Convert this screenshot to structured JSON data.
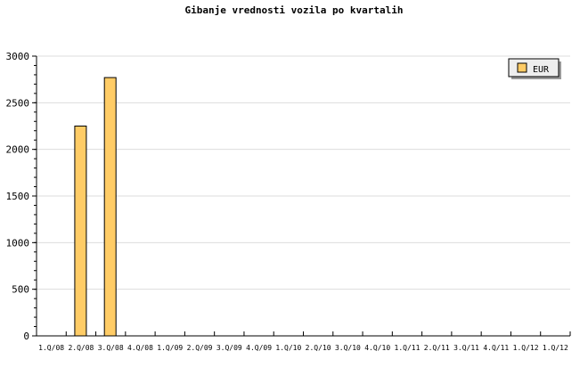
{
  "chart_data": {
    "type": "bar",
    "title": "Gibanje vrednosti vozila po kvartalih",
    "categories": [
      "1.Q/08",
      "2.Q/08",
      "3.Q/08",
      "4.Q/08",
      "1.Q/09",
      "2.Q/09",
      "3.Q/09",
      "4.Q/09",
      "1.Q/10",
      "2.Q/10",
      "3.Q/10",
      "4.Q/10",
      "1.Q/11",
      "2.Q/11",
      "3.Q/11",
      "4.Q/11",
      "1.Q/12",
      "1.Q/12"
    ],
    "series": [
      {
        "name": "EUR",
        "color": "#ffcc66",
        "values": [
          0,
          2250,
          2770,
          0,
          0,
          0,
          0,
          0,
          0,
          0,
          0,
          0,
          0,
          0,
          0,
          0,
          0,
          0
        ]
      }
    ],
    "ylim": [
      0,
      3000
    ],
    "yticks": [
      0,
      500,
      1000,
      1500,
      2000,
      2500,
      3000
    ],
    "y_minor_step": 100,
    "grid": true,
    "legend_position": "top-right",
    "xlabel": "",
    "ylabel": ""
  }
}
